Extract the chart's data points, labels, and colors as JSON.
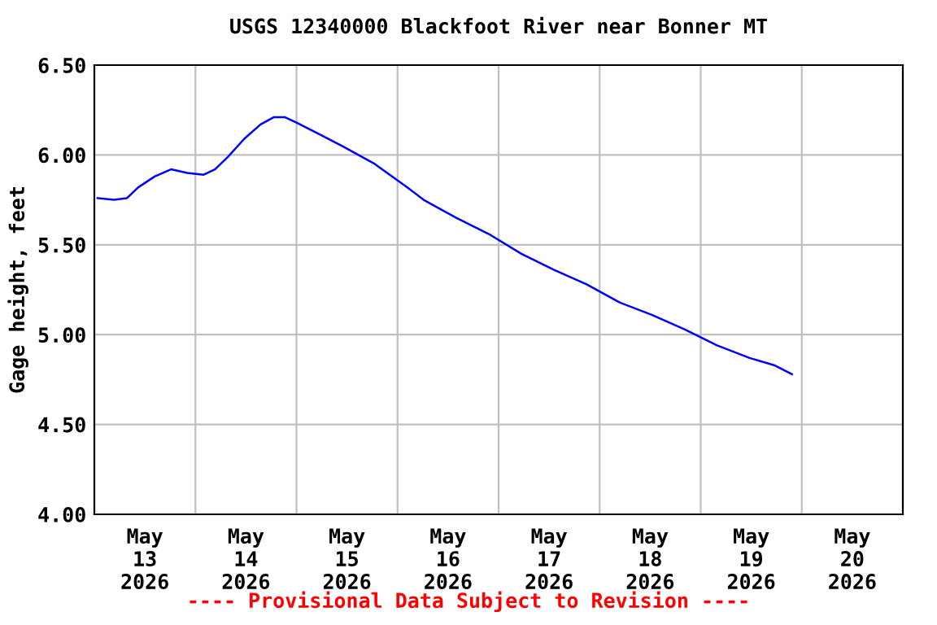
{
  "chart_data": {
    "type": "line",
    "title": "USGS 12340000 Blackfoot River near Bonner MT",
    "ylabel": "Gage height, feet",
    "annotations": [
      "---- Provisional Data Subject to Revision ----"
    ],
    "x": [
      "2026-05-13T00:46",
      "2026-05-13T04:39",
      "2026-05-13T07:45",
      "2026-05-13T10:27",
      "2026-05-13T14:19",
      "2026-05-13T18:12",
      "2026-05-13T22:04",
      "2026-05-14T01:57",
      "2026-05-14T04:39",
      "2026-05-14T07:45",
      "2026-05-14T11:37",
      "2026-05-14T15:29",
      "2026-05-14T18:35",
      "2026-05-14T21:17",
      "2026-05-15T00:00",
      "2026-05-15T05:02",
      "2026-05-15T10:50",
      "2026-05-15T18:35",
      "2026-05-16T02:19",
      "2026-05-16T06:12",
      "2026-05-16T13:56",
      "2026-05-16T21:40",
      "2026-05-17T05:25",
      "2026-05-17T13:10",
      "2026-05-17T20:54",
      "2026-05-18T04:39",
      "2026-05-18T12:23",
      "2026-05-18T20:08",
      "2026-05-19T03:52",
      "2026-05-19T11:37",
      "2026-05-19T17:25",
      "2026-05-19T21:40"
    ],
    "series": [
      {
        "color": "#0000ff",
        "values": [
          5.76,
          5.75,
          5.76,
          5.82,
          5.88,
          5.92,
          5.9,
          5.89,
          5.92,
          5.99,
          6.09,
          6.17,
          6.21,
          6.21,
          6.18,
          6.12,
          6.05,
          5.95,
          5.82,
          5.75,
          5.65,
          5.56,
          5.45,
          5.36,
          5.28,
          5.18,
          5.11,
          5.03,
          4.94,
          4.87,
          4.83,
          4.78
        ]
      }
    ],
    "xlim": [
      "2026-05-13T00:00",
      "2026-05-21T00:00"
    ],
    "xticks": [
      {
        "value": "2026-05-14T00:00",
        "label": null
      },
      {
        "value": "2026-05-15T00:00",
        "label": null
      },
      {
        "value": "2026-05-16T00:00",
        "label": null
      },
      {
        "value": "2026-05-17T00:00",
        "label": null
      },
      {
        "value": "2026-05-18T00:00",
        "label": null
      },
      {
        "value": "2026-05-19T00:00",
        "label": null
      },
      {
        "value": "2026-05-20T00:00",
        "label": null
      },
      {
        "value": "2026-05-13T12:00",
        "label": "May\n13\n2026"
      },
      {
        "value": "2026-05-14T12:00",
        "label": "May\n14\n2026"
      },
      {
        "value": "2026-05-15T12:00",
        "label": "May\n15\n2026"
      },
      {
        "value": "2026-05-16T12:00",
        "label": "May\n16\n2026"
      },
      {
        "value": "2026-05-17T12:00",
        "label": "May\n17\n2026"
      },
      {
        "value": "2026-05-18T12:00",
        "label": "May\n18\n2026"
      },
      {
        "value": "2026-05-19T12:00",
        "label": "May\n19\n2026"
      },
      {
        "value": "2026-05-20T12:00",
        "label": "May\n20\n2026"
      }
    ],
    "ylim": [
      4.0,
      6.5
    ],
    "yticks": [
      {
        "value": 4.0,
        "label": "4.00"
      },
      {
        "value": 4.5,
        "label": "4.50"
      },
      {
        "value": 5.0,
        "label": "5.00"
      },
      {
        "value": 5.5,
        "label": "5.50"
      },
      {
        "value": 6.0,
        "label": "6.00"
      },
      {
        "value": 6.5,
        "label": "6.50"
      }
    ],
    "grid": true,
    "legend": false,
    "marker": "none",
    "line_style": "solid"
  }
}
